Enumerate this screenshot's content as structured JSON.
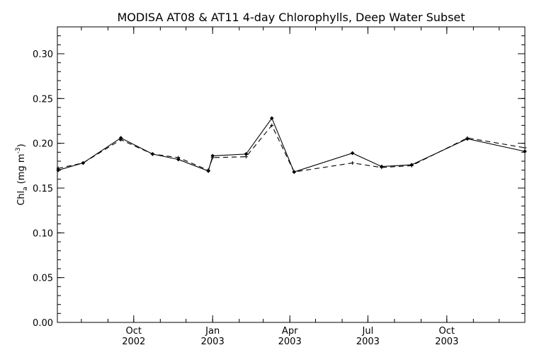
{
  "chart_data": {
    "type": "line",
    "title": "MODISA AT08 & AT11 4-day Chlorophylls, Deep Water Subset",
    "ylabel": "Chl",
    "ylabel_subscript": "a",
    "ylabel_units": "(mg m",
    "ylabel_exponent": "-3",
    "ylabel_close": ")",
    "ylim": [
      0.0,
      0.33
    ],
    "yticks": [
      "0.00",
      "0.05",
      "0.10",
      "0.15",
      "0.20",
      "0.25",
      "0.30"
    ],
    "xlim": [
      "2002-07-04",
      "2003-12-31"
    ],
    "xticks": [
      {
        "month": "Oct",
        "year": "2002",
        "date": "2002-10-01"
      },
      {
        "month": "Jan",
        "year": "2003",
        "date": "2003-01-01"
      },
      {
        "month": "Apr",
        "year": "2003",
        "date": "2003-04-01"
      },
      {
        "month": "Jul",
        "year": "2003",
        "date": "2003-07-01"
      },
      {
        "month": "Oct",
        "year": "2003",
        "date": "2003-10-01"
      }
    ],
    "grid": false,
    "series": [
      {
        "style": "solid",
        "x": [
          "2002-07-05",
          "2002-08-03",
          "2002-09-16",
          "2002-10-23",
          "2002-11-22",
          "2002-12-27",
          "2003-01-01",
          "2003-02-09",
          "2003-03-11",
          "2003-04-06",
          "2003-06-13",
          "2003-07-17",
          "2003-08-21",
          "2003-10-25",
          "2003-12-31"
        ],
        "values": [
          0.17,
          0.178,
          0.206,
          0.188,
          0.182,
          0.169,
          0.186,
          0.188,
          0.228,
          0.168,
          0.189,
          0.174,
          0.176,
          0.205,
          0.191
        ]
      },
      {
        "style": "dashed",
        "x": [
          "2002-07-05",
          "2002-08-03",
          "2002-09-16",
          "2002-10-23",
          "2002-11-22",
          "2002-12-27",
          "2003-01-01",
          "2003-02-09",
          "2003-03-11",
          "2003-04-06",
          "2003-06-13",
          "2003-07-17",
          "2003-08-21",
          "2003-10-25",
          "2003-12-31"
        ],
        "values": [
          0.172,
          0.178,
          0.204,
          0.188,
          0.184,
          0.17,
          0.184,
          0.185,
          0.22,
          0.168,
          0.178,
          0.173,
          0.175,
          0.206,
          0.195
        ]
      }
    ]
  }
}
